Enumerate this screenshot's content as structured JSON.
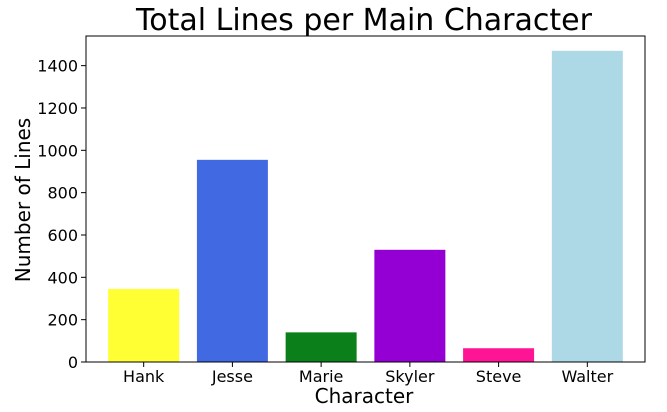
{
  "chart_data": {
    "type": "bar",
    "title": "Total Lines per Main Character",
    "xlabel": "Character",
    "ylabel": "Number of Lines",
    "categories": [
      "Hank",
      "Jesse",
      "Marie",
      "Skyler",
      "Steve",
      "Walter"
    ],
    "values": [
      345,
      955,
      140,
      530,
      65,
      1470
    ],
    "colors": [
      "#ffff33",
      "#4169e1",
      "#0a7f1a",
      "#9400d3",
      "#ff1493",
      "#add8e6"
    ],
    "ylim": [
      0,
      1540
    ],
    "yticks": [
      0,
      200,
      400,
      600,
      800,
      1000,
      1200,
      1400
    ],
    "grid": false,
    "legend": false
  }
}
